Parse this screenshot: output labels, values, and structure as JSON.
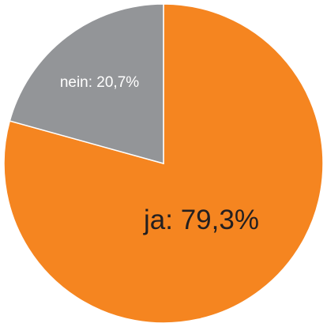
{
  "chart_data": {
    "type": "pie",
    "title": "",
    "slices": [
      {
        "label": "ja",
        "value": 79.3,
        "display": "ja: 79,3%",
        "color": "#f58520"
      },
      {
        "label": "nein",
        "value": 20.7,
        "display": "nein: 20,7%",
        "color": "#939598"
      }
    ],
    "start_angle": "12 o'clock",
    "direction": "clockwise",
    "legend": "none",
    "background": "#ffffff"
  }
}
